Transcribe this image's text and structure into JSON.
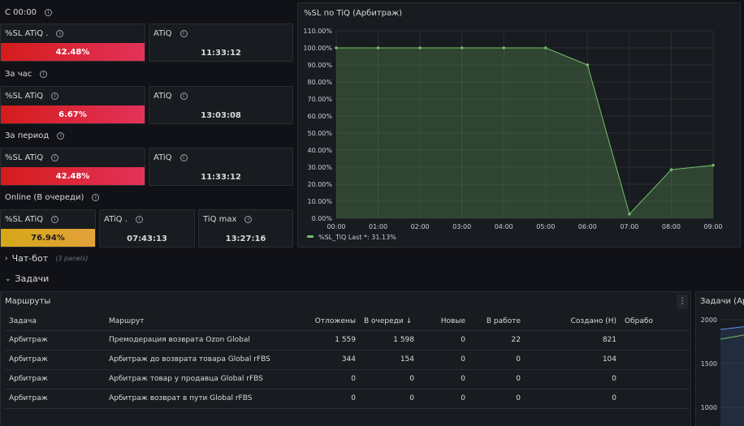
{
  "rows": {
    "since_midnight": "С 00:00",
    "per_hour": "За час",
    "per_period": "За период",
    "online": "Online (В очереди)"
  },
  "stats": {
    "r1_sl_title": "%SL ATiQ .",
    "r1_sl_value": "42.48%",
    "r1_atiq_title": "ATiQ",
    "r1_atiq_value": "11:33:12",
    "r2_sl_title": "%SL ATiQ",
    "r2_sl_value": "6.67%",
    "r2_atiq_title": "ATiQ",
    "r2_atiq_value": "13:03:08",
    "r3_sl_title": "%SL ATiQ",
    "r3_sl_value": "42.48%",
    "r3_atiq_title": "ATiQ",
    "r3_atiq_value": "11:33:12",
    "r4_sl_title": "%SL ATiQ",
    "r4_sl_value": "76.94%",
    "r4_atiq_title": "ATiQ .",
    "r4_atiq_value": "07:43:13",
    "r4_tiqmax_title": "TiQ max",
    "r4_tiqmax_value": "13:27:16"
  },
  "sections": {
    "chatbot": "Чат-бот",
    "chatbot_note": "(3 panels)",
    "tasks": "Задачи"
  },
  "routes_panel": {
    "title": "Маршруты",
    "columns": [
      "Задача",
      "Маршрут",
      "Отложены",
      "В очереди ↓",
      "Новые",
      "В работе",
      "Создано (Н)",
      "Обрабо"
    ],
    "rows": [
      [
        "Арбитраж",
        "Премодерация возврата Ozon Global",
        "1 559",
        "1 598",
        "0",
        "22",
        "821",
        ""
      ],
      [
        "Арбитраж",
        "Арбитраж до возврата товара Global rFBS",
        "344",
        "154",
        "0",
        "0",
        "104",
        ""
      ],
      [
        "Арбитраж",
        "Арбитраж товар у продавца Global rFBS",
        "0",
        "0",
        "0",
        "0",
        "0",
        ""
      ],
      [
        "Арбитраж",
        "Арбитраж возврат в пути Global rFBS",
        "0",
        "0",
        "0",
        "0",
        "0",
        ""
      ]
    ]
  },
  "tasks_panel": {
    "title": "Задачи (Ар",
    "y_ticks": [
      "2000",
      "1500",
      "1000"
    ]
  },
  "chart_data": {
    "type": "area",
    "title": "%SL по TiQ (Арбитраж)",
    "x": [
      "00:00",
      "01:00",
      "02:00",
      "03:00",
      "04:00",
      "05:00",
      "06:00",
      "07:00",
      "08:00",
      "09:00"
    ],
    "series": [
      {
        "name": "%SL_TiQ",
        "values": [
          100,
          100,
          100,
          100,
          100,
          100,
          90,
          2.5,
          28.5,
          31.13
        ]
      }
    ],
    "y_ticks": [
      "110.00%",
      "100.00%",
      "90.00%",
      "80.00%",
      "70.00%",
      "60.00%",
      "50.00%",
      "40.00%",
      "30.00%",
      "20.00%",
      "10.00%",
      "0.00%"
    ],
    "ylim": [
      0,
      110
    ],
    "legend_text": "%SL_TiQ  Last *: 31.13%",
    "color": "#73bf69",
    "grid": true,
    "legend": "bottom-left"
  }
}
